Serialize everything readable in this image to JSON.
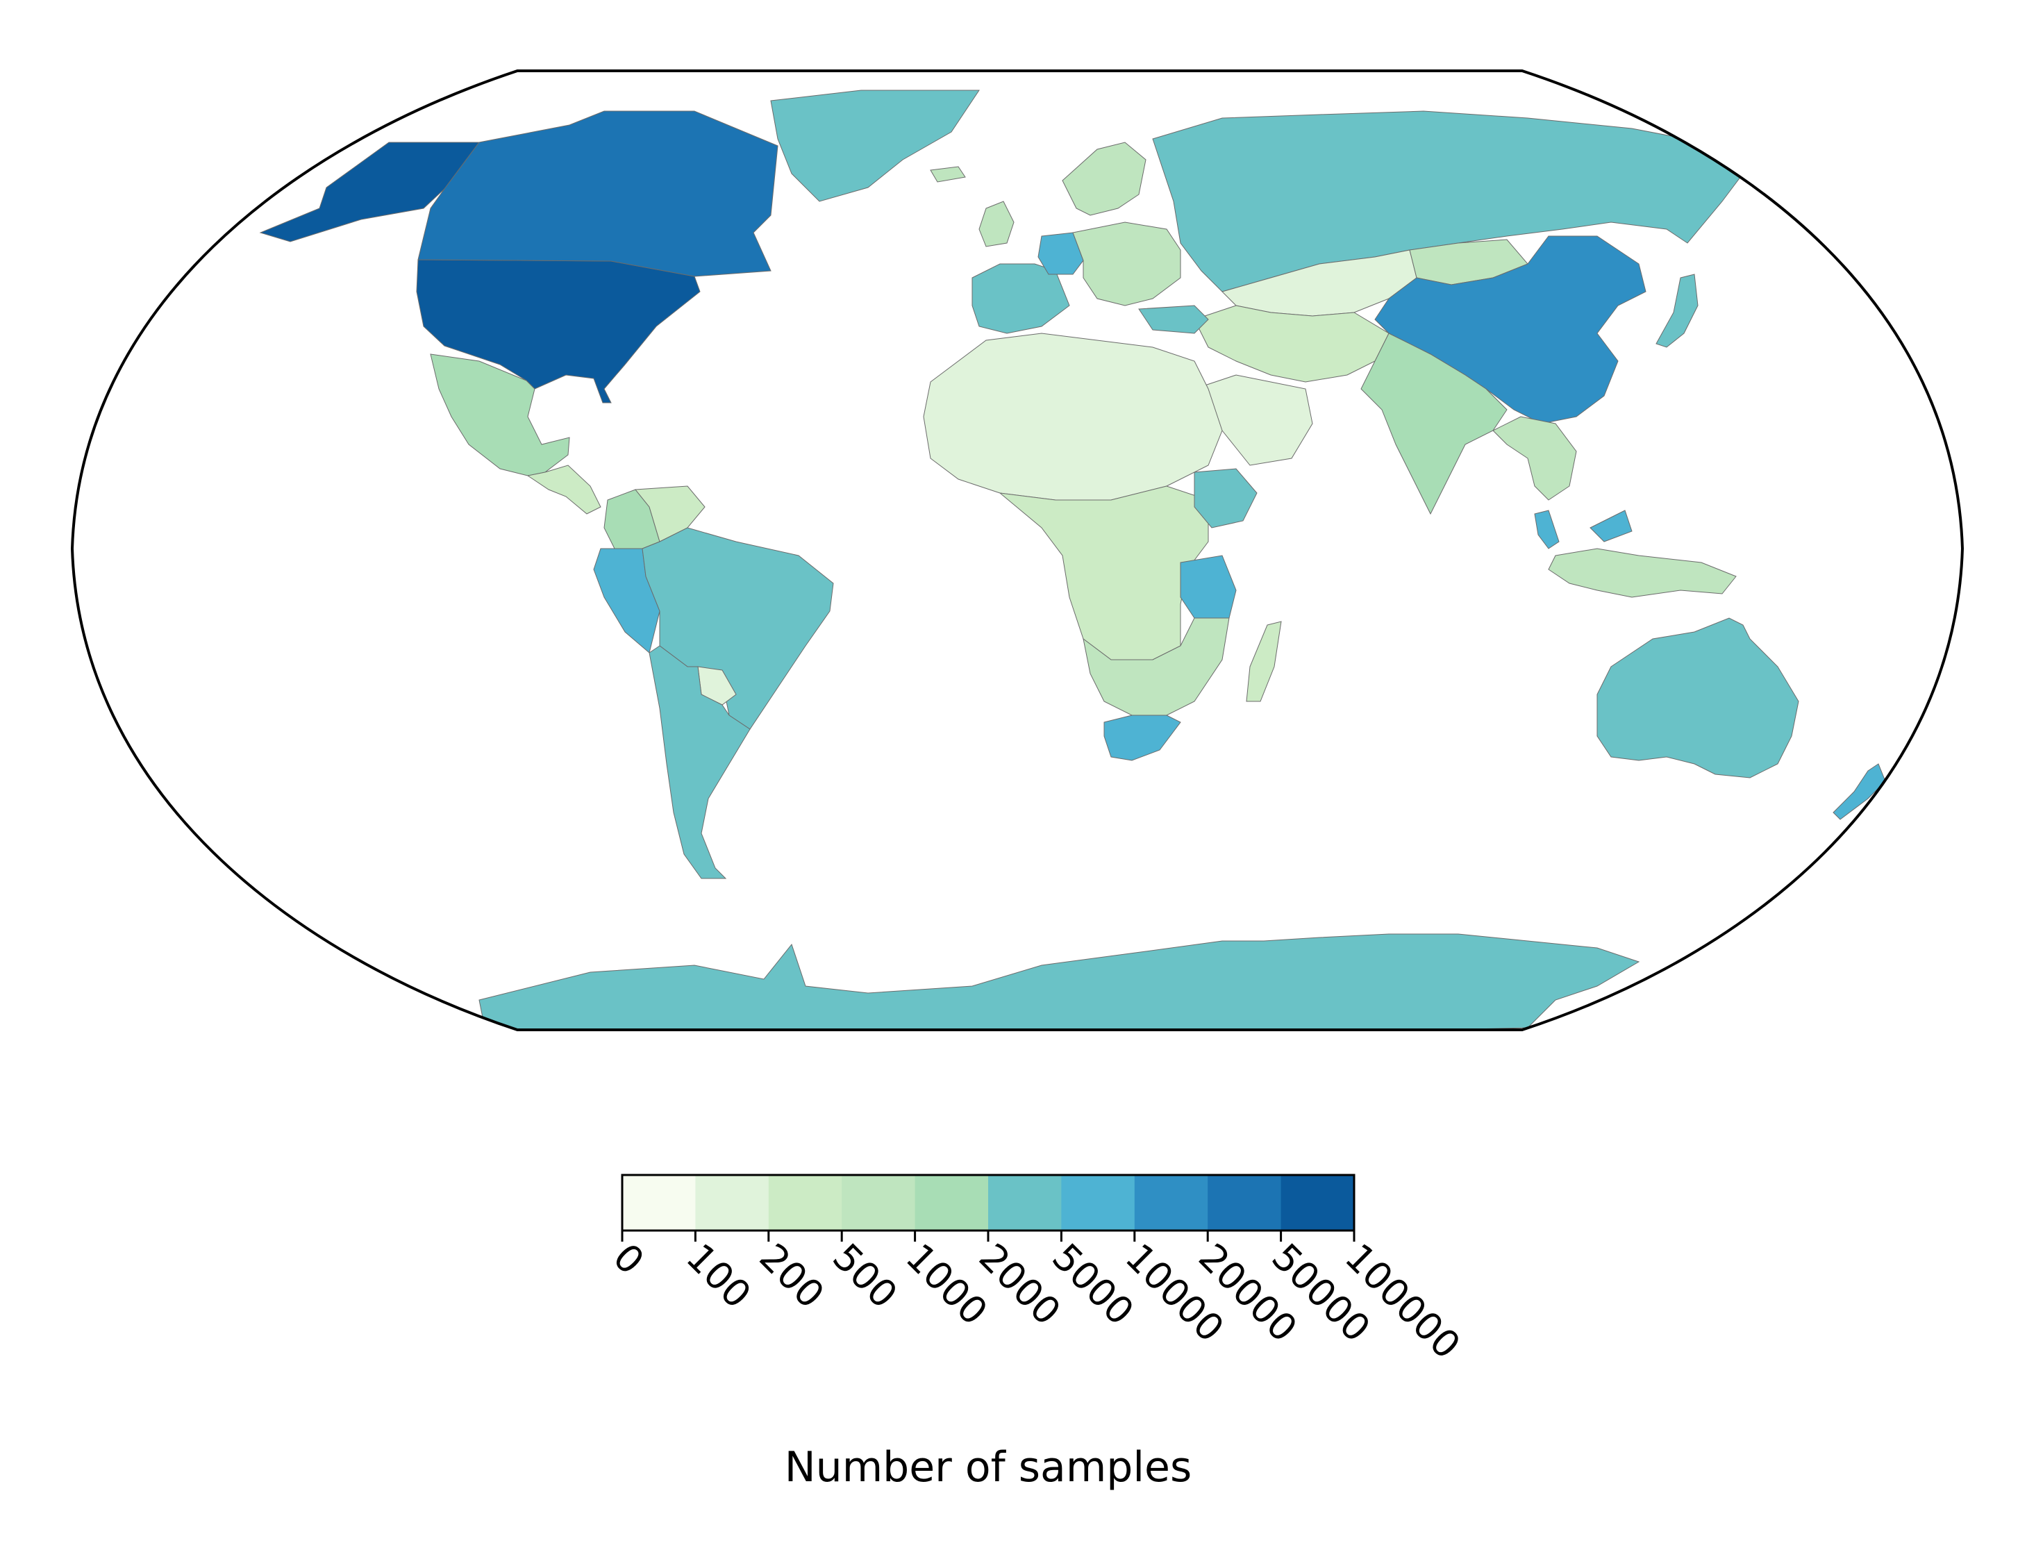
{
  "colorbar": {
    "label": "Number of samples",
    "ticks": [
      "0",
      "100",
      "200",
      "500",
      "1000",
      "2000",
      "5000",
      "10000",
      "20000",
      "50000",
      "100000"
    ],
    "colors": [
      "#f7fcf0",
      "#e0f3db",
      "#ccebc5",
      "#bfe5bf",
      "#a8ddb5",
      "#6ac2c6",
      "#4eb3d3",
      "#2f8fc4",
      "#1c74b3",
      "#0b5a9c"
    ],
    "no_data_color": "#dcdcdc"
  },
  "regions": [
    {
      "name": "United States",
      "bin": 9
    },
    {
      "name": "Alaska",
      "bin": 9
    },
    {
      "name": "Canada",
      "bin": 8
    },
    {
      "name": "Greenland",
      "bin": 5
    },
    {
      "name": "Mexico",
      "bin": 4
    },
    {
      "name": "Central America",
      "bin": 2
    },
    {
      "name": "Colombia",
      "bin": 4
    },
    {
      "name": "Venezuela",
      "bin": 2
    },
    {
      "name": "Peru",
      "bin": 6
    },
    {
      "name": "Brazil",
      "bin": 5
    },
    {
      "name": "Argentina",
      "bin": 5
    },
    {
      "name": "Paraguay",
      "bin": 1
    },
    {
      "name": "Russia",
      "bin": 5
    },
    {
      "name": "China",
      "bin": 7
    },
    {
      "name": "Mongolia",
      "bin": 3
    },
    {
      "name": "Kazakhstan",
      "bin": 1
    },
    {
      "name": "India",
      "bin": 4
    },
    {
      "name": "Germany",
      "bin": 6
    },
    {
      "name": "Western Europe",
      "bin": 5
    },
    {
      "name": "Scandinavia",
      "bin": 3
    },
    {
      "name": "Eastern Europe",
      "bin": 3
    },
    {
      "name": "Turkey",
      "bin": 5
    },
    {
      "name": "Middle East",
      "bin": 2
    },
    {
      "name": "Arabian Peninsula",
      "bin": 1
    },
    {
      "name": "North Africa",
      "bin": 1
    },
    {
      "name": "Central Africa",
      "bin": 2
    },
    {
      "name": "Ethiopia",
      "bin": 5
    },
    {
      "name": "Tanzania",
      "bin": 6
    },
    {
      "name": "Southern Africa",
      "bin": 3
    },
    {
      "name": "South Africa",
      "bin": 6
    },
    {
      "name": "Madagascar",
      "bin": 2
    },
    {
      "name": "Southeast Asia",
      "bin": 3
    },
    {
      "name": "Malaysia",
      "bin": 6
    },
    {
      "name": "Indonesia",
      "bin": 3
    },
    {
      "name": "Japan",
      "bin": 5
    },
    {
      "name": "Australia",
      "bin": 5
    },
    {
      "name": "New Zealand",
      "bin": 6
    },
    {
      "name": "Antarctica",
      "bin": 5
    },
    {
      "name": "Iceland",
      "bin": 3
    },
    {
      "name": "United Kingdom",
      "bin": 3
    }
  ]
}
